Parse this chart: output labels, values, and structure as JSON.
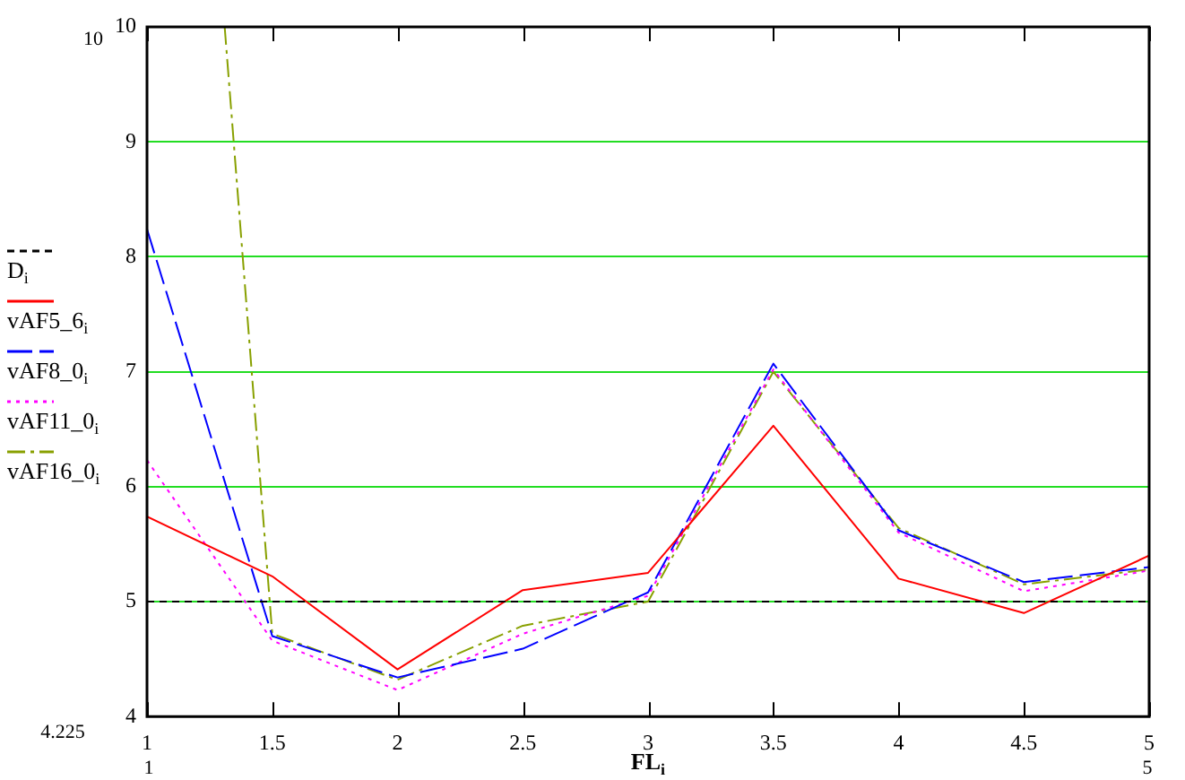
{
  "chart_data": {
    "type": "line",
    "xlabel": "FL$_{i}$",
    "x": [
      1,
      1.5,
      2,
      2.5,
      3,
      3.5,
      4,
      4.5,
      5
    ],
    "xlim": [
      1,
      5
    ],
    "xticks": [
      1,
      1.5,
      2,
      2.5,
      3,
      3.5,
      4,
      4.5,
      5
    ],
    "ylim": [
      4,
      10
    ],
    "yticks": [
      4,
      5,
      6,
      7,
      8,
      9,
      10
    ],
    "grid": "y",
    "legend": "left",
    "series": [
      {
        "name": "D$_{i}$",
        "color": "#000000",
        "line_style": "dashed",
        "values": [
          5,
          5,
          5,
          5,
          5,
          5,
          5,
          5,
          5
        ]
      },
      {
        "name": "vAF5_6$_{i}$",
        "color": "#ff0000",
        "line_style": "solid",
        "values": [
          5.74,
          5.22,
          4.41,
          5.1,
          5.25,
          6.53,
          5.2,
          4.9,
          5.4
        ]
      },
      {
        "name": "vAF8_0$_{i}$",
        "color": "#0000ff",
        "line_style": "dashed",
        "values": [
          8.24,
          4.7,
          4.34,
          4.59,
          5.08,
          7.07,
          5.62,
          5.17,
          5.3
        ]
      },
      {
        "name": "vAF11_0$_{i}$",
        "color": "#ff00ff",
        "line_style": "dotted",
        "values": [
          6.23,
          4.66,
          4.23,
          4.72,
          5.05,
          7.02,
          5.6,
          5.09,
          5.27
        ]
      },
      {
        "name": "vAF16_0$_{i}$",
        "color": "#88a000",
        "line_style": "dashed",
        "x": [
          1.31,
          1.5,
          2,
          2.5,
          3,
          3.5,
          4,
          4.5,
          5
        ],
        "values": [
          10,
          4.72,
          4.32,
          4.79,
          5.0,
          7.0,
          5.64,
          5.15,
          5.28
        ]
      }
    ],
    "annotations": [
      "10",
      "4.225",
      "1",
      "5"
    ]
  }
}
